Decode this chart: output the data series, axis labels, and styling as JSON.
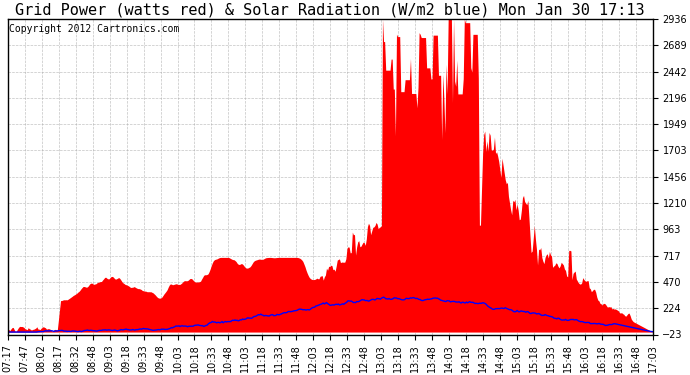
{
  "title": "Grid Power (watts red) & Solar Radiation (W/m2 blue) Mon Jan 30 17:13",
  "copyright": "Copyright 2012 Cartronics.com",
  "yticks": [
    2935.7,
    2689.1,
    2442.5,
    2196.0,
    1949.4,
    1702.9,
    1456.3,
    1209.8,
    963.2,
    716.7,
    470.1,
    223.5,
    -23.0
  ],
  "ymin": -23.0,
  "ymax": 2935.7,
  "xtick_labels": [
    "07:17",
    "07:47",
    "08:02",
    "08:17",
    "08:32",
    "08:48",
    "09:03",
    "09:18",
    "09:33",
    "09:48",
    "10:03",
    "10:18",
    "10:33",
    "10:48",
    "11:03",
    "11:18",
    "11:33",
    "11:48",
    "12:03",
    "12:18",
    "12:33",
    "12:48",
    "13:03",
    "13:18",
    "13:33",
    "13:48",
    "14:03",
    "14:18",
    "14:33",
    "14:48",
    "15:03",
    "15:18",
    "15:33",
    "15:48",
    "16:03",
    "16:18",
    "16:33",
    "16:48",
    "17:03"
  ],
  "bg_color": "#ffffff",
  "plot_bg_color": "#ffffff",
  "grid_color": "#aaaaaa",
  "red_color": "#ff0000",
  "blue_color": "#0000ff",
  "title_fontsize": 11,
  "copyright_fontsize": 7,
  "tick_fontsize": 7,
  "border_color": "#000000"
}
